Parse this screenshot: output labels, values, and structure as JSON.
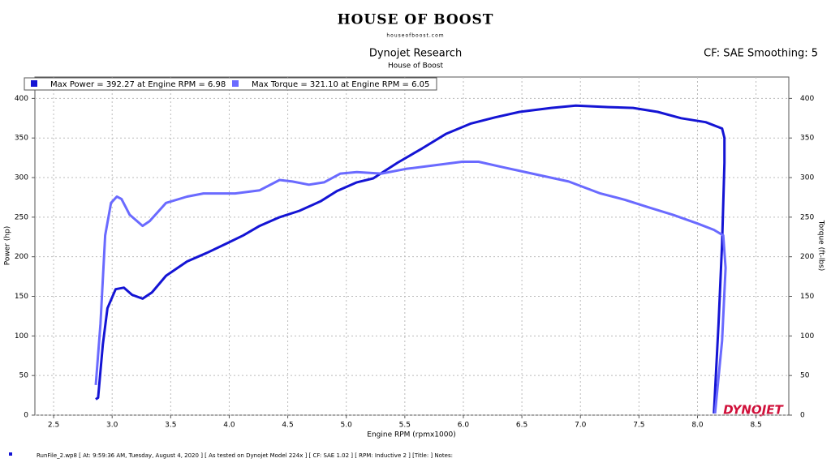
{
  "chart_data": {
    "type": "line",
    "logo": "HOUSE OF BOOST",
    "logo_url": "houseofboost.com",
    "title": "Dynojet Research",
    "subtitle": "House of Boost",
    "corner_note": "CF: SAE Smoothing: 5",
    "x_label": "Engine RPM (rpmx1000)",
    "y_label": "Power (hp)",
    "y2_label": "Torque (ft-lbs)",
    "brand": "DYNOJET",
    "footer": "RunFile_2.wp8 [ At: 9:59:36 AM, Tuesday, August 4, 2020 ] [ As tested on Dynojet Model 224x ] [ CF: SAE 1.02 ] [ RPM: Inductive 2 ] [Title: ]  Notes:",
    "xlim": [
      2.34,
      8.78
    ],
    "ylim": [
      0,
      427
    ],
    "y2lim": [
      0,
      427
    ],
    "xticks": [
      2.5,
      {
        "value": 3,
        "label": "3.0"
      },
      3.5,
      {
        "value": 4,
        "label": "4.0"
      },
      4.5,
      {
        "value": 5,
        "label": "5.0"
      },
      5.5,
      {
        "value": 6,
        "label": "6.0"
      },
      6.5,
      {
        "value": 7,
        "label": "7.0"
      },
      7.5,
      {
        "value": 8,
        "label": "8.0"
      },
      8.5
    ],
    "yticks": [
      0,
      50,
      100,
      150,
      200,
      250,
      300,
      350,
      400
    ],
    "y2ticks": [
      0,
      50,
      100,
      150,
      200,
      250,
      300,
      350,
      400
    ],
    "grid": true,
    "series": [
      {
        "name": "Max Power = 392.27 at Engine RPM = 6.98",
        "color": "#1414d4",
        "x": [
          2.86,
          2.88,
          2.92,
          2.96,
          3.03,
          3.1,
          3.17,
          3.26,
          3.34,
          3.46,
          3.64,
          3.81,
          3.98,
          4.12,
          4.26,
          4.43,
          4.6,
          4.78,
          4.92,
          5.09,
          5.23,
          5.44,
          5.65,
          5.85,
          6.06,
          6.27,
          6.48,
          6.75,
          6.96,
          7.24,
          7.45,
          7.66,
          7.86,
          8.07,
          8.21,
          8.23,
          8.23,
          8.21,
          8.18,
          8.14
        ],
        "values": [
          20,
          22,
          89,
          135,
          159,
          161,
          152,
          147,
          155,
          176,
          194,
          205,
          217,
          227,
          239,
          250,
          258,
          270,
          283,
          294,
          299,
          319,
          337,
          355,
          368,
          376,
          383,
          388,
          391,
          389,
          388,
          383,
          375,
          370,
          362,
          350,
          319,
          217,
          115,
          2
        ]
      },
      {
        "name": "Max Torque = 321.10 at Engine RPM = 6.05",
        "color": "#6a6aff",
        "axis": "y2",
        "x": [
          2.86,
          2.9,
          2.94,
          2.99,
          3.04,
          3.08,
          3.15,
          3.26,
          3.32,
          3.46,
          3.64,
          3.78,
          4.05,
          4.26,
          4.43,
          4.54,
          4.68,
          4.81,
          4.95,
          5.09,
          5.3,
          5.51,
          5.78,
          5.99,
          6.13,
          6.34,
          6.62,
          6.9,
          7.17,
          7.38,
          7.59,
          7.79,
          8.0,
          8.14,
          8.22,
          8.24,
          8.21,
          8.15
        ],
        "values": [
          38,
          115,
          227,
          268,
          276,
          273,
          253,
          239,
          245,
          268,
          276,
          280,
          280,
          284,
          297,
          295,
          291,
          294,
          305,
          307,
          305,
          311,
          316,
          320,
          320,
          313,
          304,
          295,
          280,
          272,
          262,
          253,
          242,
          234,
          227,
          186,
          94,
          2
        ]
      }
    ]
  }
}
